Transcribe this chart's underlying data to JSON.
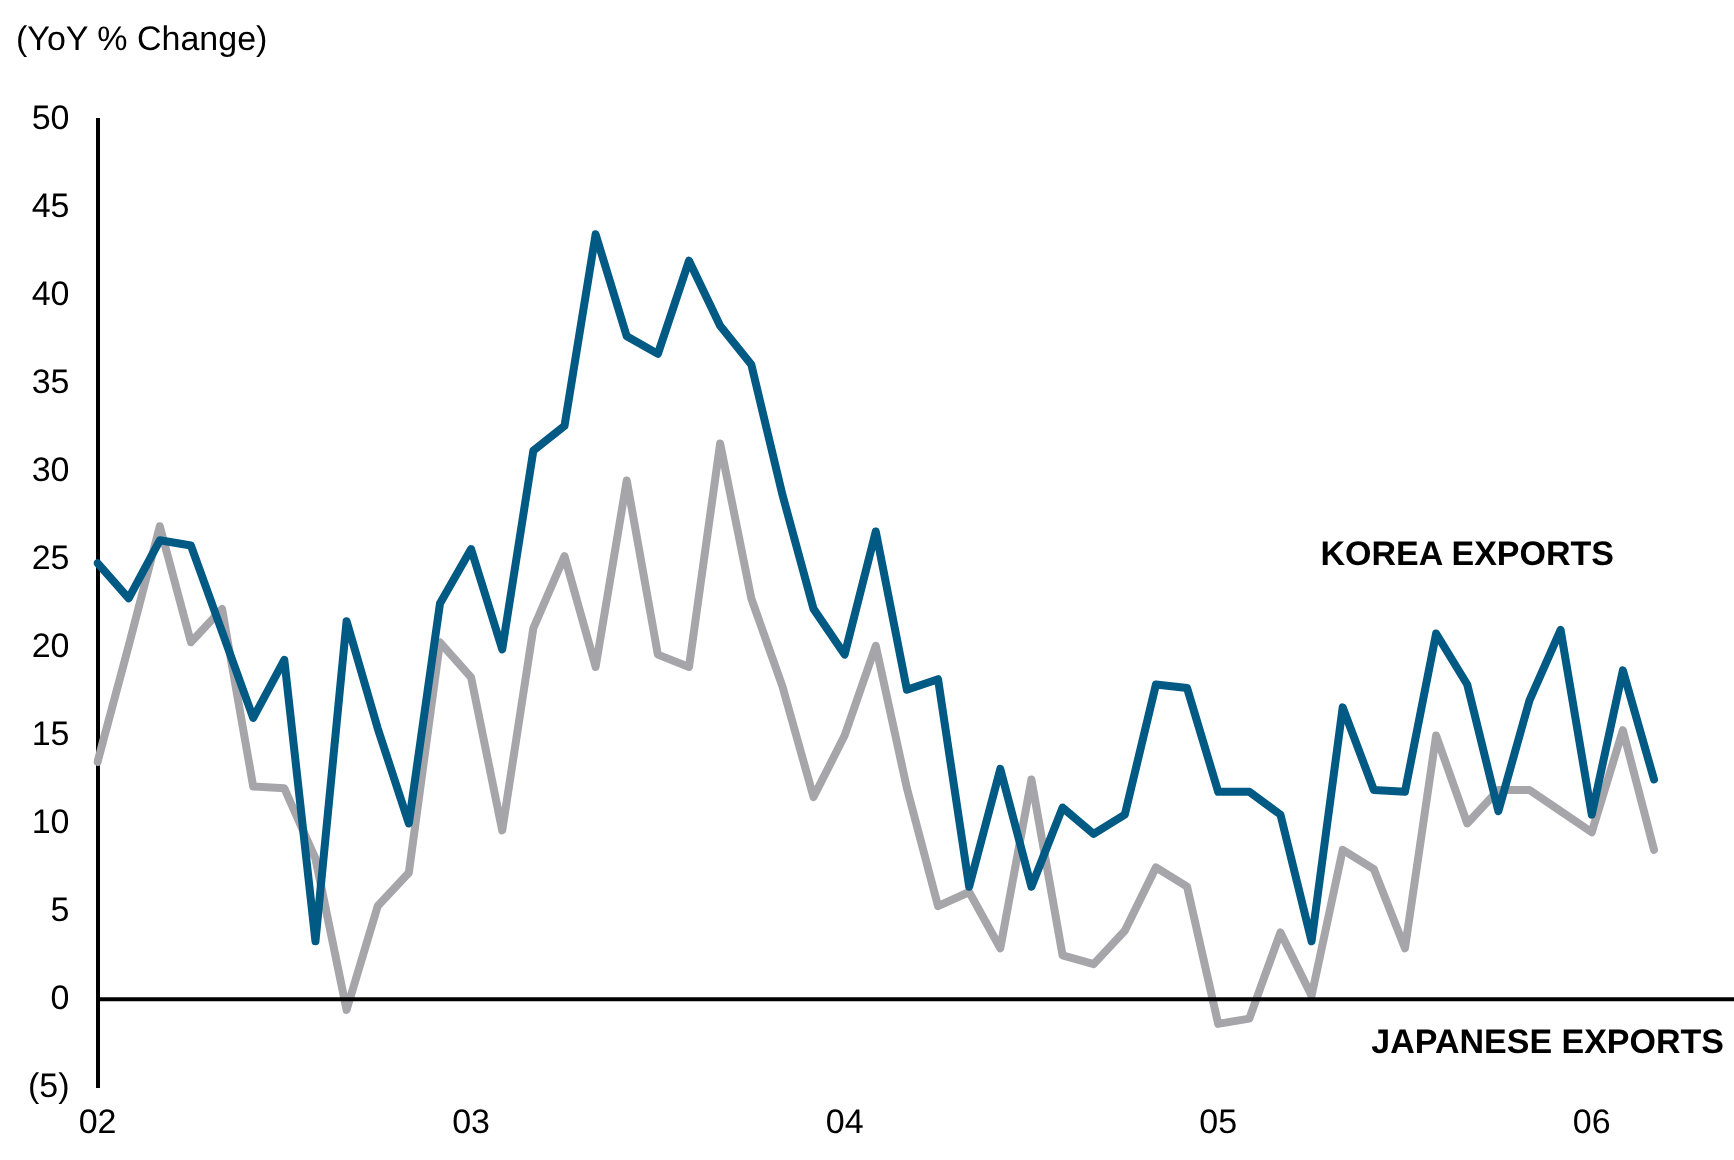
{
  "chart_data": {
    "type": "line",
    "ylabel": "(YoY % Change)",
    "categories": [
      "02",
      null,
      null,
      null,
      null,
      null,
      null,
      null,
      null,
      null,
      null,
      null,
      "03",
      null,
      null,
      null,
      null,
      null,
      null,
      null,
      null,
      null,
      null,
      null,
      "04",
      null,
      null,
      null,
      null,
      null,
      null,
      null,
      null,
      null,
      null,
      null,
      "05",
      null,
      null,
      null,
      null,
      null,
      null,
      null,
      null,
      null,
      null,
      null,
      "06",
      null,
      null
    ],
    "series": [
      {
        "name": "KOREA EXPORTS",
        "color": "#005a84",
        "values": [
          24.8,
          22.8,
          26.1,
          25.8,
          20.9,
          16.0,
          19.3,
          3.3,
          21.5,
          15.4,
          10.0,
          22.5,
          25.6,
          19.9,
          31.2,
          32.6,
          43.5,
          37.7,
          36.7,
          42.0,
          38.3,
          36.1,
          28.7,
          22.2,
          19.6,
          26.6,
          17.6,
          18.2,
          6.4,
          13.1,
          6.4,
          10.9,
          9.4,
          10.5,
          17.9,
          17.7,
          11.8,
          11.8,
          10.5,
          3.3,
          16.6,
          11.9,
          11.8,
          20.8,
          17.9,
          10.7,
          17.0,
          21.0,
          10.5,
          18.7,
          12.5
        ]
      },
      {
        "name": "JAPANESE EXPORTS",
        "color": "#a6a6aa",
        "values": [
          13.5,
          20.1,
          26.9,
          20.3,
          22.2,
          12.1,
          12.0,
          8.0,
          -0.6,
          5.3,
          7.2,
          20.3,
          18.3,
          9.6,
          21.1,
          25.2,
          18.9,
          29.5,
          19.6,
          18.9,
          31.6,
          22.8,
          17.8,
          11.5,
          15.0,
          20.1,
          12.0,
          5.3,
          6.1,
          2.9,
          12.5,
          2.5,
          2.0,
          3.9,
          7.5,
          6.4,
          -1.4,
          -1.1,
          3.8,
          0.2,
          8.5,
          7.4,
          2.9,
          15.0,
          10.0,
          11.9,
          11.9,
          10.7,
          9.5,
          15.3,
          8.5
        ]
      }
    ],
    "ylim": [
      -5,
      50
    ],
    "yticks": [
      {
        "value": -5,
        "label": "(5)"
      },
      0,
      5,
      10,
      15,
      20,
      25,
      30,
      35,
      40,
      45,
      50
    ],
    "ref_lines": [
      {
        "axis": "y",
        "value": 0,
        "color": "#000000"
      }
    ],
    "grid": false,
    "legend": false,
    "marker": "none",
    "line_style": "solid"
  }
}
